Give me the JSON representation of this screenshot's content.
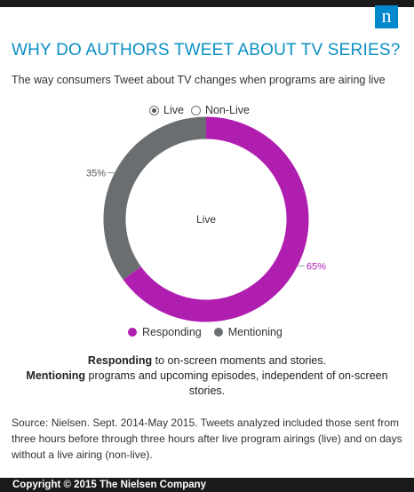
{
  "header": {
    "logo_text": "n"
  },
  "title": "WHY DO AUTHORS TWEET ABOUT TV SERIES?",
  "subtitle": "The way consumers Tweet about TV changes when programs are airing live",
  "toggle": {
    "options": [
      "Live",
      "Non-Live"
    ],
    "selected": "Live"
  },
  "chart_data": {
    "type": "pie",
    "variant": "donut",
    "center_label": "Live",
    "categories": [
      "Responding",
      "Mentioning"
    ],
    "values": [
      65,
      35
    ],
    "value_labels": [
      "65%",
      "35%"
    ],
    "colors": [
      "#b01eb0",
      "#6b6e70"
    ],
    "legend_position": "bottom"
  },
  "notes": {
    "responding_term": "Responding",
    "responding_text": " to on-screen moments and stories.",
    "mentioning_term": "Mentioning",
    "mentioning_text": " programs and upcoming episodes, independent of on-screen stories."
  },
  "source": "Source: Nielsen. Sept. 2014-May 2015. Tweets analyzed included those sent from three hours before through three hours after live program airings (live) and on days without a live airing (non-live).",
  "footer": "Copyright © 2015 The Nielsen Company"
}
